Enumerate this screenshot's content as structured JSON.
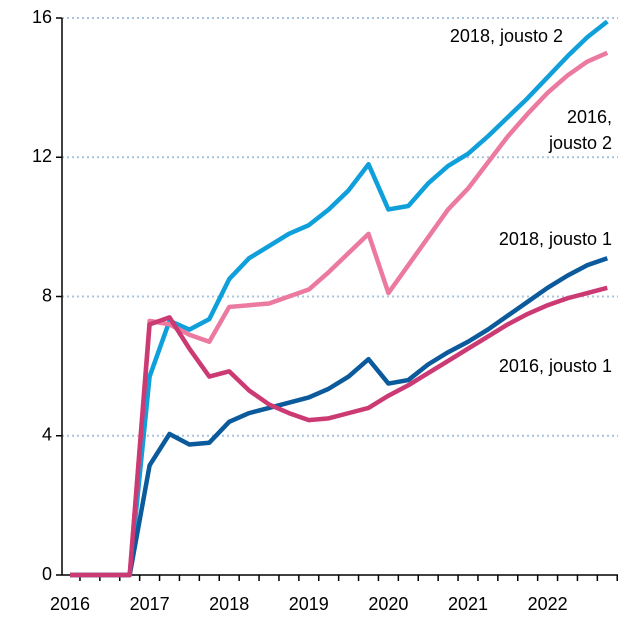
{
  "chart_data": {
    "type": "line",
    "categories": [
      "2016",
      null,
      null,
      null,
      "2017",
      null,
      null,
      null,
      "2018",
      null,
      null,
      null,
      "2019",
      null,
      null,
      null,
      "2020",
      null,
      null,
      null,
      "2021",
      null,
      null,
      null,
      "2022",
      null,
      null,
      null
    ],
    "series": [
      {
        "name": "2018, jousto 2",
        "color": "#0fa0dc",
        "values": [
          0,
          0,
          0,
          0,
          5.7,
          7.3,
          7.05,
          7.35,
          8.5,
          9.1,
          9.45,
          9.8,
          10.05,
          10.5,
          11.05,
          11.8,
          10.5,
          10.6,
          11.25,
          11.75,
          12.1,
          12.6,
          13.15,
          13.7,
          14.3,
          14.9,
          15.45,
          15.9
        ]
      },
      {
        "name": "2016, jousto 2",
        "color": "#ec7aa0",
        "values": [
          0,
          0,
          0,
          0,
          7.3,
          7.2,
          6.9,
          6.7,
          7.7,
          7.75,
          7.8,
          8.0,
          8.2,
          8.7,
          9.25,
          9.8,
          8.1,
          8.9,
          9.7,
          10.5,
          11.1,
          11.85,
          12.6,
          13.25,
          13.85,
          14.35,
          14.75,
          15.0
        ]
      },
      {
        "name": "2018, jousto 1",
        "color": "#0a5a9c",
        "values": [
          0,
          0,
          0,
          0,
          3.15,
          4.05,
          3.75,
          3.8,
          4.4,
          4.65,
          4.8,
          4.95,
          5.1,
          5.35,
          5.7,
          6.2,
          5.5,
          5.6,
          6.05,
          6.4,
          6.7,
          7.05,
          7.45,
          7.85,
          8.25,
          8.6,
          8.9,
          9.1
        ]
      },
      {
        "name": "2016, jousto 1",
        "color": "#cc3a74",
        "values": [
          0,
          0,
          0,
          0,
          7.2,
          7.4,
          6.5,
          5.7,
          5.85,
          5.3,
          4.9,
          4.65,
          4.45,
          4.5,
          4.65,
          4.8,
          5.15,
          5.45,
          5.8,
          6.15,
          6.5,
          6.85,
          7.2,
          7.5,
          7.75,
          7.95,
          8.1,
          8.25
        ]
      }
    ],
    "ylim": [
      0,
      16
    ],
    "yticks": [
      0,
      4,
      8,
      12,
      16
    ],
    "grid": true
  }
}
